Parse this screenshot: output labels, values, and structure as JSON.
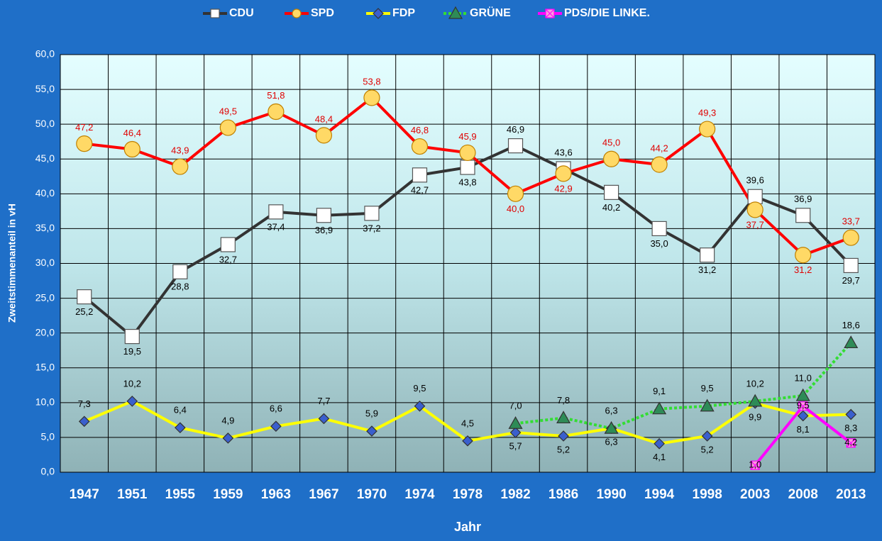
{
  "chart_data": {
    "type": "line",
    "x_label": "Jahr",
    "y_label": "Zweitstimmenanteil in vH",
    "categories": [
      "1947",
      "1951",
      "1955",
      "1959",
      "1963",
      "1967",
      "1970",
      "1974",
      "1978",
      "1982",
      "1986",
      "1990",
      "1994",
      "1998",
      "2003",
      "2008",
      "2013"
    ],
    "ylim": [
      0,
      60
    ],
    "yticks": [
      {
        "value": 0,
        "label": "0,0"
      },
      {
        "value": 5,
        "label": "5,0"
      },
      {
        "value": 10,
        "label": "10,0"
      },
      {
        "value": 15,
        "label": "15,0"
      },
      {
        "value": 20,
        "label": "20,0"
      },
      {
        "value": 25,
        "label": "25,0"
      },
      {
        "value": 30,
        "label": "30,0"
      },
      {
        "value": 35,
        "label": "35,0"
      },
      {
        "value": 40,
        "label": "40,0"
      },
      {
        "value": 45,
        "label": "45,0"
      },
      {
        "value": 50,
        "label": "50,0"
      },
      {
        "value": 55,
        "label": "55,0"
      },
      {
        "value": 60,
        "label": "60,0"
      }
    ],
    "grid": true,
    "legend": "top",
    "series": [
      {
        "name": "CDU",
        "color": "#333333",
        "marker": "square",
        "marker_color": "#ffffff",
        "label_color": "#000000",
        "values": [
          25.2,
          19.5,
          28.8,
          32.7,
          37.4,
          36.9,
          37.2,
          42.7,
          43.8,
          46.9,
          43.6,
          40.2,
          35.0,
          31.2,
          39.6,
          36.9,
          29.7
        ],
        "value_labels": [
          "25,2",
          "19,5",
          "28,8",
          "32,7",
          "37,4",
          "36,9",
          "37,2",
          "42,7",
          "43,8",
          "46,9",
          "43,6",
          "40,2",
          "35,0",
          "31,2",
          "39,6",
          "36,9",
          "29,7"
        ]
      },
      {
        "name": "SPD",
        "color": "#ff0000",
        "marker": "circle",
        "marker_color": "#ffd966",
        "label_color": "#e00000",
        "values": [
          47.2,
          46.4,
          43.9,
          49.5,
          51.8,
          48.4,
          53.8,
          46.8,
          45.9,
          40.0,
          42.9,
          45.0,
          44.2,
          49.3,
          37.7,
          31.2,
          33.7
        ],
        "value_labels": [
          "47,2",
          "46,4",
          "43,9",
          "49,5",
          "51,8",
          "48,4",
          "53,8",
          "46,8",
          "45,9",
          "40,0",
          "42,9",
          "45,0",
          "44,2",
          "49,3",
          "37,7",
          "31,2",
          "33,7"
        ]
      },
      {
        "name": "FDP",
        "color": "#ffff00",
        "marker": "diamond",
        "marker_color": "#3a5fcd",
        "label_color": "#000000",
        "values": [
          7.3,
          10.2,
          6.4,
          4.9,
          6.6,
          7.7,
          5.9,
          9.5,
          4.5,
          5.7,
          5.2,
          6.3,
          4.1,
          5.2,
          9.9,
          8.1,
          8.3
        ],
        "value_labels": [
          "7,3",
          "10,2",
          "6,4",
          "4,9",
          "6,6",
          "7,7",
          "5,9",
          "9,5",
          "4,5",
          "5,7",
          "5,2",
          "6,3",
          "4,1",
          "5,2",
          "9,9",
          "8,1",
          "8,3"
        ]
      },
      {
        "name": "GRÜNE",
        "color": "#33dd33",
        "marker": "triangle",
        "marker_color": "#2e8b57",
        "label_color": "#000000",
        "dashed": true,
        "values": [
          null,
          null,
          null,
          null,
          null,
          null,
          null,
          null,
          null,
          7.0,
          7.8,
          6.3,
          9.1,
          9.5,
          10.2,
          11.0,
          18.6
        ],
        "value_labels": [
          null,
          null,
          null,
          null,
          null,
          null,
          null,
          null,
          null,
          "7,0",
          "7,8",
          "6,3",
          "9,1",
          "9,5",
          "10,2",
          "11,0",
          "18,6"
        ]
      },
      {
        "name": "PDS/DIE LINKE.",
        "color": "#ff00ff",
        "marker": "xsquare",
        "marker_color": "#ff99dd",
        "label_color": "#000000",
        "values": [
          null,
          null,
          null,
          null,
          null,
          null,
          null,
          null,
          null,
          null,
          null,
          null,
          null,
          null,
          1.0,
          9.5,
          4.2
        ],
        "value_labels": [
          null,
          null,
          null,
          null,
          null,
          null,
          null,
          null,
          null,
          null,
          null,
          null,
          null,
          null,
          "1,0",
          "9,5",
          "4,2"
        ]
      }
    ]
  }
}
